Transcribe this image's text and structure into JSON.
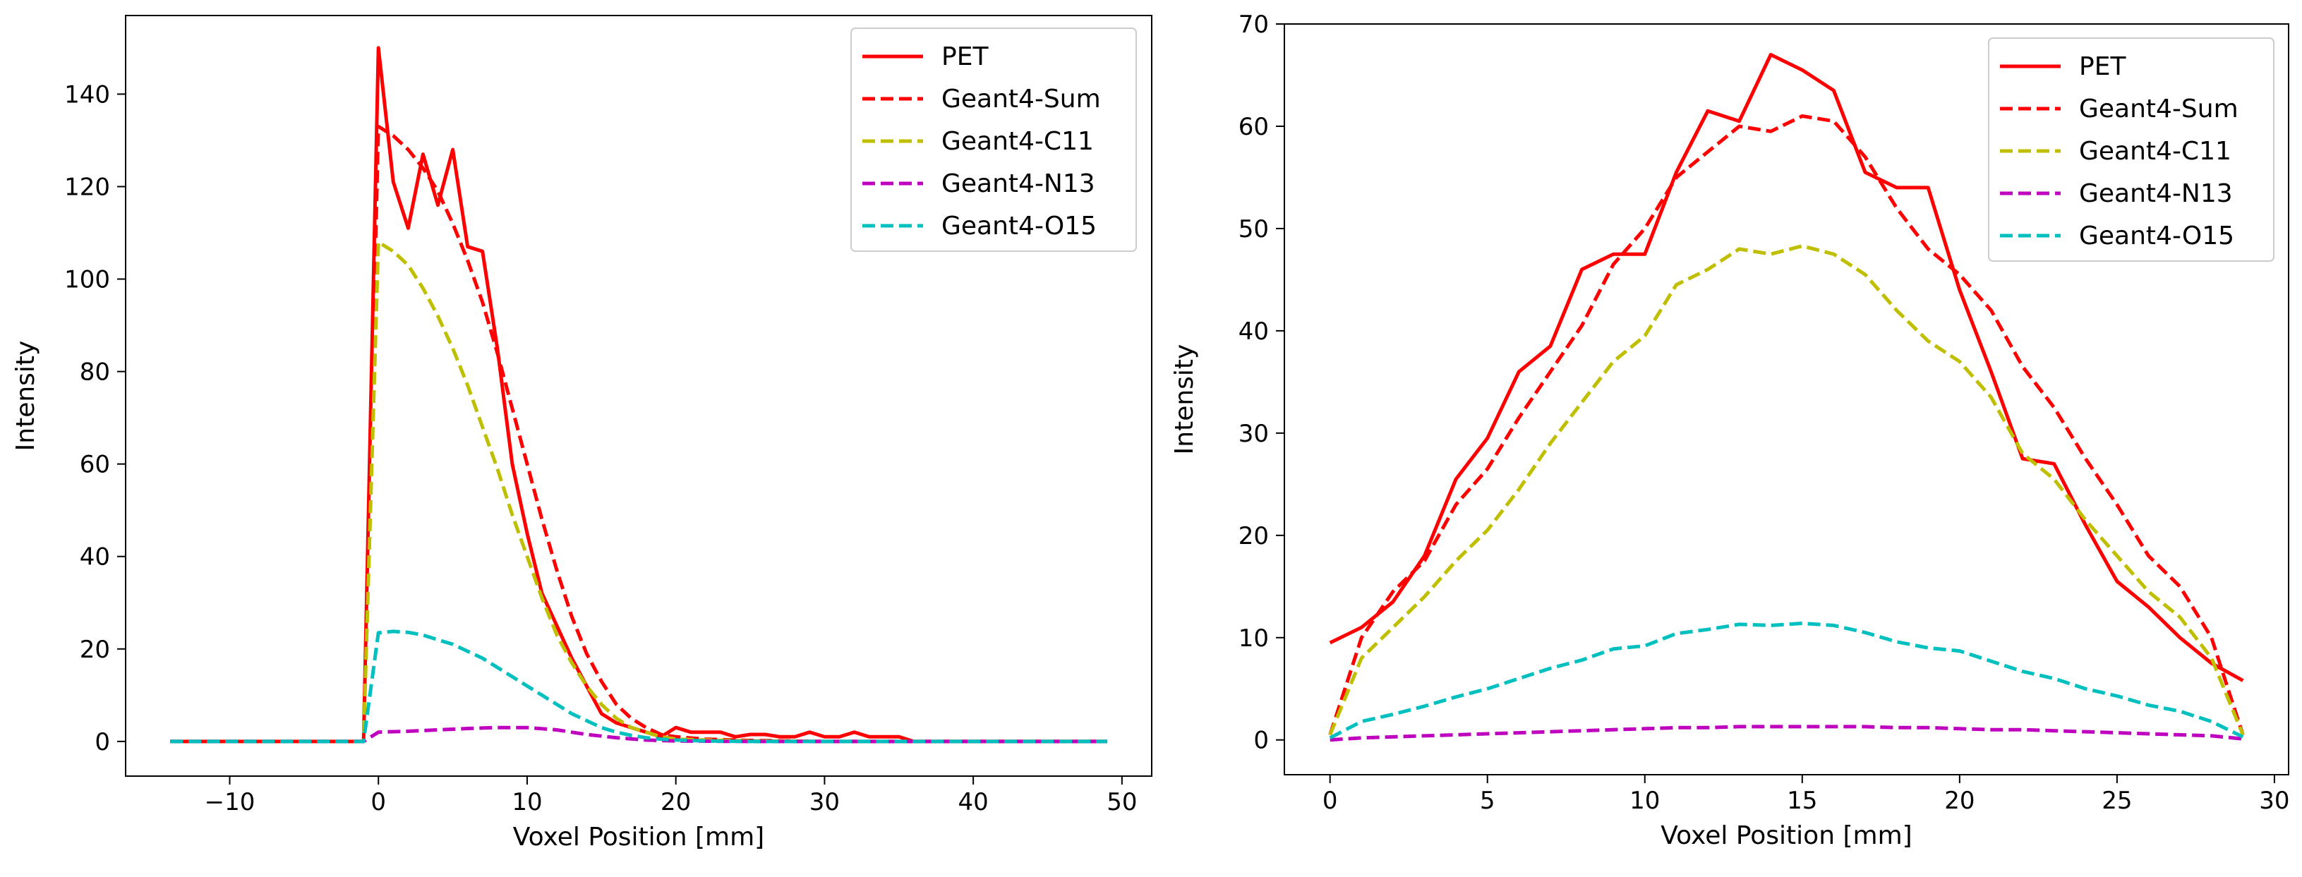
{
  "chart_data": [
    {
      "type": "line",
      "xlabel": "Voxel Position [mm]",
      "ylabel": "Intensity",
      "xlim": [
        -17,
        52
      ],
      "ylim": [
        -7.5,
        157
      ],
      "xticks": [
        -10,
        0,
        10,
        20,
        30,
        40,
        50
      ],
      "xtick_labels": [
        "−10",
        "0",
        "10",
        "20",
        "30",
        "40",
        "50"
      ],
      "yticks": [
        0,
        20,
        40,
        60,
        80,
        100,
        120,
        140
      ],
      "ytick_labels": [
        "0",
        "20",
        "40",
        "60",
        "80",
        "100",
        "120",
        "140"
      ],
      "legend_position": "top-right",
      "series": [
        {
          "name": "PET",
          "color": "#ff0000",
          "dash": "solid",
          "x": [
            -14,
            -13,
            -12,
            -11,
            -10,
            -9,
            -8,
            -7,
            -6,
            -5,
            -4,
            -3,
            -2,
            -1,
            0,
            1,
            2,
            3,
            4,
            5,
            6,
            7,
            8,
            9,
            10,
            11,
            12,
            13,
            14,
            15,
            16,
            17,
            18,
            19,
            20,
            21,
            22,
            23,
            24,
            25,
            26,
            27,
            28,
            29,
            30,
            31,
            32,
            33,
            34,
            35,
            36,
            37,
            38,
            39,
            40,
            41,
            42,
            43,
            44,
            45,
            46,
            47,
            48,
            49
          ],
          "values": [
            0,
            0,
            0,
            0,
            0,
            0,
            0,
            0,
            0,
            0,
            0,
            0,
            0,
            0,
            150,
            121,
            111,
            127,
            116,
            128,
            107,
            106,
            85,
            60,
            45,
            32,
            25,
            18,
            12,
            6,
            4,
            3,
            2,
            1,
            3,
            2,
            2,
            2,
            1,
            1.5,
            1.5,
            1,
            1,
            2,
            1,
            1,
            2,
            1,
            1,
            1,
            0,
            0,
            0,
            0,
            0,
            0,
            0,
            0,
            0,
            0,
            0,
            0,
            0,
            0
          ]
        },
        {
          "name": "Geant4-Sum",
          "color": "#ff0000",
          "dash": "dashed",
          "x": [
            -14,
            -12,
            -10,
            -8,
            -6,
            -4,
            -2,
            -1,
            0,
            1,
            2,
            3,
            4,
            5,
            6,
            7,
            8,
            9,
            10,
            11,
            12,
            13,
            14,
            15,
            16,
            17,
            18,
            19,
            20,
            22,
            25,
            30,
            35,
            40,
            45,
            49
          ],
          "values": [
            0,
            0,
            0,
            0,
            0,
            0,
            0,
            0,
            133,
            131,
            128,
            124,
            119,
            112,
            104,
            95,
            84,
            72,
            60,
            48,
            37,
            27,
            19,
            13,
            8,
            5,
            3,
            1.5,
            1,
            0.5,
            0.2,
            0,
            0,
            0,
            0,
            0
          ]
        },
        {
          "name": "Geant4-C11",
          "color": "#bfbf00",
          "dash": "dashed",
          "x": [
            -14,
            -12,
            -10,
            -8,
            -6,
            -4,
            -2,
            -1,
            0,
            1,
            2,
            3,
            4,
            5,
            6,
            7,
            8,
            9,
            10,
            11,
            12,
            13,
            14,
            15,
            16,
            17,
            18,
            19,
            20,
            22,
            25,
            30,
            35,
            40,
            45,
            49
          ],
          "values": [
            0,
            0,
            0,
            0,
            0,
            0,
            0,
            0,
            108,
            106,
            103,
            98,
            92,
            85,
            77,
            68,
            59,
            49,
            40,
            31,
            23,
            17,
            12,
            8,
            5,
            3,
            2,
            1,
            0.5,
            0.3,
            0.1,
            0,
            0,
            0,
            0,
            0
          ]
        },
        {
          "name": "Geant4-N13",
          "color": "#bf00bf",
          "dash": "dashed",
          "x": [
            -14,
            -12,
            -10,
            -8,
            -6,
            -4,
            -2,
            -1,
            0,
            2,
            4,
            6,
            8,
            10,
            12,
            14,
            16,
            18,
            20,
            25,
            30,
            35,
            40,
            45,
            49
          ],
          "values": [
            0,
            0,
            0,
            0,
            0,
            0,
            0,
            0,
            2,
            2.2,
            2.5,
            2.8,
            3,
            3,
            2.5,
            1.5,
            0.8,
            0.3,
            0.1,
            0,
            0,
            0,
            0,
            0,
            0
          ]
        },
        {
          "name": "Geant4-O15",
          "color": "#00bfbf",
          "dash": "dashed",
          "x": [
            -14,
            -12,
            -10,
            -8,
            -6,
            -4,
            -2,
            -1,
            0,
            1,
            2,
            3,
            4,
            5,
            6,
            7,
            8,
            9,
            10,
            11,
            12,
            13,
            14,
            15,
            16,
            17,
            18,
            19,
            20,
            22,
            25,
            30,
            35,
            40,
            45,
            49
          ],
          "values": [
            0,
            0,
            0,
            0,
            0,
            0,
            0,
            0,
            23.5,
            23.8,
            23.6,
            23,
            22,
            21,
            19.5,
            18,
            16,
            14,
            12,
            10,
            8,
            6,
            4.5,
            3,
            2,
            1.3,
            0.8,
            0.5,
            0.3,
            0.1,
            0,
            0,
            0,
            0,
            0,
            0
          ]
        }
      ]
    },
    {
      "type": "line",
      "xlabel": "Voxel Position [mm]",
      "ylabel": "Intensity",
      "xlim": [
        -1.45,
        30.45
      ],
      "ylim": [
        -3.4,
        70
      ],
      "xticks": [
        0,
        5,
        10,
        15,
        20,
        25,
        30
      ],
      "xtick_labels": [
        "0",
        "5",
        "10",
        "15",
        "20",
        "25",
        "30"
      ],
      "yticks": [
        0,
        10,
        20,
        30,
        40,
        50,
        60,
        70
      ],
      "ytick_labels": [
        "0",
        "10",
        "20",
        "30",
        "40",
        "50",
        "60",
        "70"
      ],
      "legend_position": "top-right",
      "series": [
        {
          "name": "PET",
          "color": "#ff0000",
          "dash": "solid",
          "x": [
            0,
            1,
            2,
            3,
            4,
            5,
            6,
            7,
            8,
            9,
            10,
            11,
            12,
            13,
            14,
            15,
            16,
            17,
            18,
            19,
            20,
            21,
            22,
            23,
            24,
            25,
            26,
            27,
            28,
            29
          ],
          "values": [
            9.5,
            11,
            13.5,
            18,
            25.5,
            29.5,
            36,
            38.5,
            46,
            47.5,
            47.5,
            55.5,
            61.5,
            60.5,
            67,
            65.5,
            63.5,
            55.5,
            54,
            54,
            44,
            36,
            27.5,
            27,
            21,
            15.5,
            13,
            10,
            7.5,
            5.8
          ]
        },
        {
          "name": "Geant4-Sum",
          "color": "#ff0000",
          "dash": "dashed",
          "x": [
            0,
            1,
            2,
            3,
            4,
            5,
            6,
            7,
            8,
            9,
            10,
            11,
            12,
            13,
            14,
            15,
            16,
            17,
            18,
            19,
            20,
            21,
            22,
            23,
            24,
            25,
            26,
            27,
            28,
            29
          ],
          "values": [
            0.5,
            10,
            14.5,
            17.5,
            23,
            26.5,
            31.5,
            36,
            40.5,
            46.5,
            50,
            55,
            57.5,
            60,
            59.5,
            61,
            60.5,
            57,
            52,
            48,
            45.5,
            42,
            36.5,
            32.5,
            27.5,
            23,
            18,
            15,
            10,
            0.5
          ]
        },
        {
          "name": "Geant4-C11",
          "color": "#bfbf00",
          "dash": "dashed",
          "x": [
            0,
            1,
            2,
            3,
            4,
            5,
            6,
            7,
            8,
            9,
            10,
            11,
            12,
            13,
            14,
            15,
            16,
            17,
            18,
            19,
            20,
            21,
            22,
            23,
            24,
            25,
            26,
            27,
            28,
            29
          ],
          "values": [
            0.5,
            8,
            11,
            14,
            17.5,
            20.5,
            24.5,
            29,
            33,
            37,
            39.5,
            44.5,
            46,
            48,
            47.5,
            48.3,
            47.5,
            45.5,
            42,
            39,
            37,
            33.5,
            28,
            25.5,
            21.5,
            18,
            14.5,
            12,
            8,
            0.5
          ]
        },
        {
          "name": "Geant4-N13",
          "color": "#bf00bf",
          "dash": "dashed",
          "x": [
            0,
            1,
            2,
            3,
            4,
            5,
            6,
            7,
            8,
            9,
            10,
            11,
            12,
            13,
            14,
            15,
            16,
            17,
            18,
            19,
            20,
            21,
            22,
            23,
            24,
            25,
            26,
            27,
            28,
            29
          ],
          "values": [
            0,
            0.2,
            0.3,
            0.4,
            0.5,
            0.6,
            0.7,
            0.8,
            0.9,
            1,
            1.1,
            1.2,
            1.2,
            1.3,
            1.3,
            1.3,
            1.3,
            1.3,
            1.2,
            1.2,
            1.1,
            1,
            1,
            0.9,
            0.8,
            0.7,
            0.6,
            0.5,
            0.4,
            0.1
          ]
        },
        {
          "name": "Geant4-O15",
          "color": "#00bfbf",
          "dash": "dashed",
          "x": [
            0,
            1,
            2,
            3,
            4,
            5,
            6,
            7,
            8,
            9,
            10,
            11,
            12,
            13,
            14,
            15,
            16,
            17,
            18,
            19,
            20,
            21,
            22,
            23,
            24,
            25,
            26,
            27,
            28,
            29
          ],
          "values": [
            0.2,
            1.8,
            2.5,
            3.3,
            4.2,
            5,
            6,
            7,
            7.8,
            8.9,
            9.2,
            10.4,
            10.8,
            11.3,
            11.2,
            11.4,
            11.2,
            10.5,
            9.6,
            9,
            8.7,
            7.7,
            6.7,
            6,
            5,
            4.3,
            3.4,
            2.8,
            1.8,
            0.3
          ]
        }
      ]
    }
  ]
}
